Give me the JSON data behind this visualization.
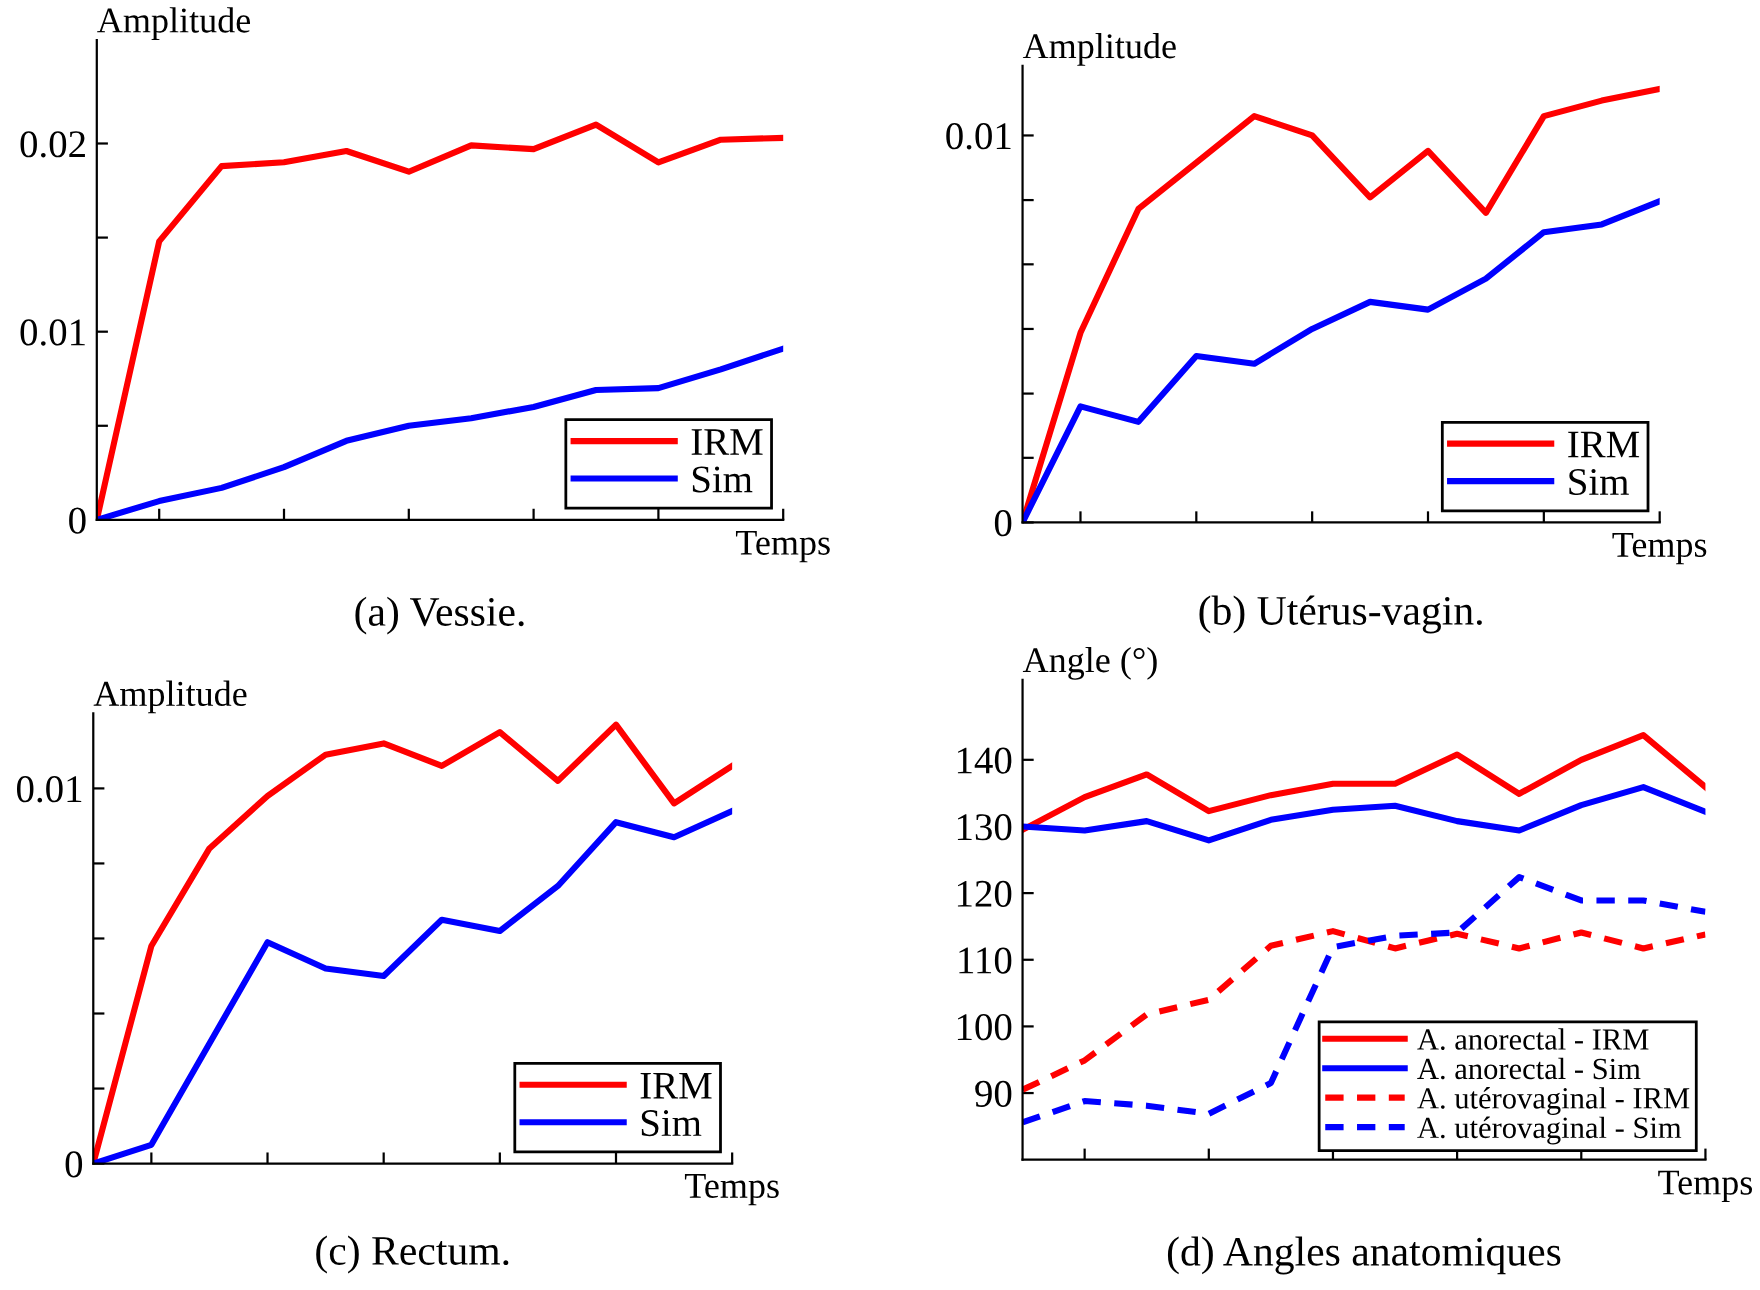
{
  "chart_data": [
    {
      "type": "line",
      "title": "(a) Vessie.",
      "xlabel": "Temps",
      "ylabel": "Amplitude",
      "categories": [
        null,
        null,
        null,
        null,
        null,
        null,
        null,
        null,
        null,
        null,
        null,
        null
      ],
      "ylim": [
        0,
        0.0255
      ],
      "yticks": [
        0,
        {
          "value": 0.005,
          "label": null
        },
        {
          "value": 0.01,
          "label": "0.01"
        },
        {
          "value": 0.015,
          "label": null
        },
        {
          "value": 0.02,
          "label": "0.02"
        }
      ],
      "tick_labels": "y",
      "legend": "bottom right",
      "line_style": "solid",
      "series": [
        {
          "name": "IRM",
          "color": "#ff0000",
          "values": [
            0,
            0.0148,
            0.0188,
            0.019,
            0.0196,
            0.0185,
            0.0199,
            0.0197,
            0.021,
            0.019,
            0.0202,
            0.0203
          ]
        },
        {
          "name": "Sim",
          "color": "#0000ff",
          "values": [
            0,
            0.001,
            0.0017,
            0.0028,
            0.0042,
            0.005,
            0.0054,
            0.006,
            0.0069,
            0.007,
            0.008,
            0.0091
          ]
        }
      ]
    },
    {
      "type": "line",
      "title": "(b) Utérus-vagin.",
      "xlabel": "Temps",
      "ylabel": "Amplitude",
      "categories": [
        null,
        null,
        null,
        null,
        null,
        null,
        null,
        null,
        null,
        null,
        null,
        null
      ],
      "ylim": [
        0,
        0.0118
      ],
      "yticks": [
        0,
        {
          "value": 0.00167,
          "label": null
        },
        {
          "value": 0.00333,
          "label": null
        },
        {
          "value": 0.005,
          "label": null
        },
        {
          "value": 0.00667,
          "label": null
        },
        {
          "value": 0.00833,
          "label": null
        },
        {
          "value": 0.01,
          "label": "0.01"
        }
      ],
      "tick_labels": "y",
      "legend": "bottom right",
      "line_style": "solid",
      "series": [
        {
          "name": "IRM",
          "color": "#ff0000",
          "values": [
            0,
            0.0049,
            0.0081,
            0.0093,
            0.0105,
            0.01,
            0.0084,
            0.0096,
            0.008,
            0.0105,
            0.0109,
            0.0112
          ]
        },
        {
          "name": "Sim",
          "color": "#0000ff",
          "values": [
            0,
            0.003,
            0.0026,
            0.0043,
            0.0041,
            0.005,
            0.0057,
            0.0055,
            0.0063,
            0.0075,
            0.0077,
            0.0083
          ]
        }
      ]
    },
    {
      "type": "line",
      "title": "(c) Rectum.",
      "xlabel": "Temps",
      "ylabel": "Amplitude",
      "categories": [
        null,
        null,
        null,
        null,
        null,
        null,
        null,
        null,
        null,
        null,
        null,
        null
      ],
      "ylim": [
        0,
        0.012
      ],
      "yticks": [
        0,
        {
          "value": 0.002,
          "label": null
        },
        {
          "value": 0.004,
          "label": null
        },
        {
          "value": 0.006,
          "label": null
        },
        {
          "value": 0.008,
          "label": null
        },
        {
          "value": 0.01,
          "label": "0.01"
        }
      ],
      "tick_labels": "y",
      "legend": "bottom right",
      "line_style": "solid",
      "series": [
        {
          "name": "IRM",
          "color": "#ff0000",
          "values": [
            0,
            0.0058,
            0.0084,
            0.0098,
            0.0109,
            0.0112,
            0.0106,
            0.0115,
            0.0102,
            0.0117,
            0.0096,
            0.0106
          ]
        },
        {
          "name": "Sim",
          "color": "#0000ff",
          "values": [
            0,
            0.0005,
            0.0032,
            0.0059,
            0.0052,
            0.005,
            0.0065,
            0.0062,
            0.0074,
            0.0091,
            0.0087,
            0.0094
          ]
        }
      ]
    },
    {
      "type": "line",
      "title": "(d) Angles anatomiques",
      "xlabel": "Temps",
      "ylabel": "Angle (°)",
      "categories": [
        null,
        null,
        null,
        null,
        null,
        null,
        null,
        null,
        null,
        null,
        null,
        null
      ],
      "ylim": [
        80,
        152
      ],
      "yticks": [
        90,
        100,
        110,
        120,
        130,
        140
      ],
      "tick_labels": "y",
      "legend": "bottom right",
      "series": [
        {
          "name": "A. anorectal - IRM",
          "color": "#ff0000",
          "line_style": "solid",
          "values": [
            129.5,
            134.4,
            137.8,
            132.3,
            134.7,
            136.4,
            136.4,
            140.8,
            134.9,
            140,
            143.7,
            135.9
          ]
        },
        {
          "name": "A. anorectal - Sim",
          "color": "#0000ff",
          "line_style": "solid",
          "values": [
            130,
            129.4,
            130.8,
            127.9,
            131,
            132.5,
            133.1,
            130.8,
            129.4,
            133.2,
            135.9,
            132.2
          ]
        },
        {
          "name": "A. utérovaginal - IRM",
          "color": "#ff0000",
          "line_style": "dashed",
          "values": [
            90.5,
            94.9,
            101.8,
            104,
            112.1,
            114.3,
            111.7,
            113.9,
            111.7,
            114.1,
            111.7,
            113.8
          ]
        },
        {
          "name": "A. utérovaginal - Sim",
          "color": "#0000ff",
          "line_style": "dashed",
          "values": [
            85.6,
            88.8,
            88.1,
            86.9,
            91.5,
            111.9,
            113.6,
            114.1,
            122.4,
            118.9,
            118.9,
            117.2
          ]
        }
      ]
    }
  ]
}
